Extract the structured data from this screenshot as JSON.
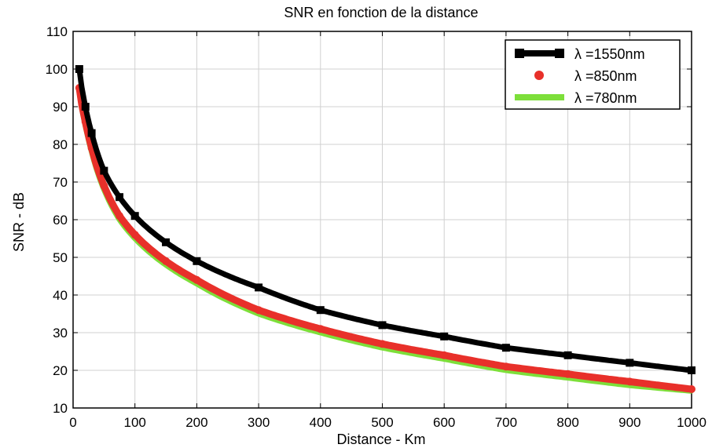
{
  "chart_data": {
    "type": "line",
    "title": "SNR en fonction de la distance",
    "xlabel": "Distance - Km",
    "ylabel": "SNR - dB",
    "xlim": [
      0,
      1000
    ],
    "ylim": [
      10,
      110
    ],
    "xticks": [
      0,
      100,
      200,
      300,
      400,
      500,
      600,
      700,
      800,
      900,
      1000
    ],
    "yticks": [
      10,
      20,
      30,
      40,
      50,
      60,
      70,
      80,
      90,
      100,
      110
    ],
    "grid": true,
    "legend_position": "top-right",
    "series": [
      {
        "name": "λ =1550nm",
        "color": "#000000",
        "marker": "square",
        "x": [
          10,
          20,
          30,
          50,
          75,
          100,
          150,
          200,
          300,
          400,
          500,
          600,
          700,
          800,
          900,
          1000
        ],
        "y": [
          100,
          90,
          83,
          73,
          66,
          61,
          54,
          49,
          42,
          36,
          32,
          29,
          26,
          24,
          22,
          20
        ]
      },
      {
        "name": "λ =850nm",
        "color": "#e8302a",
        "marker": "star",
        "x": [
          10,
          20,
          30,
          50,
          75,
          100,
          150,
          200,
          300,
          400,
          500,
          600,
          700,
          800,
          900,
          1000
        ],
        "y": [
          95,
          86,
          79,
          69,
          61,
          56,
          49,
          44,
          36,
          31,
          27,
          24,
          21,
          19,
          17,
          15
        ]
      },
      {
        "name": "λ =780nm",
        "color": "#7ddf3a",
        "marker": "none",
        "x": [
          10,
          20,
          30,
          50,
          75,
          100,
          150,
          200,
          300,
          400,
          500,
          600,
          700,
          800,
          900,
          1000
        ],
        "y": [
          94,
          85,
          78,
          68,
          60,
          55,
          48,
          43,
          35,
          30,
          26,
          23,
          20,
          18,
          16,
          14.5
        ]
      }
    ]
  }
}
